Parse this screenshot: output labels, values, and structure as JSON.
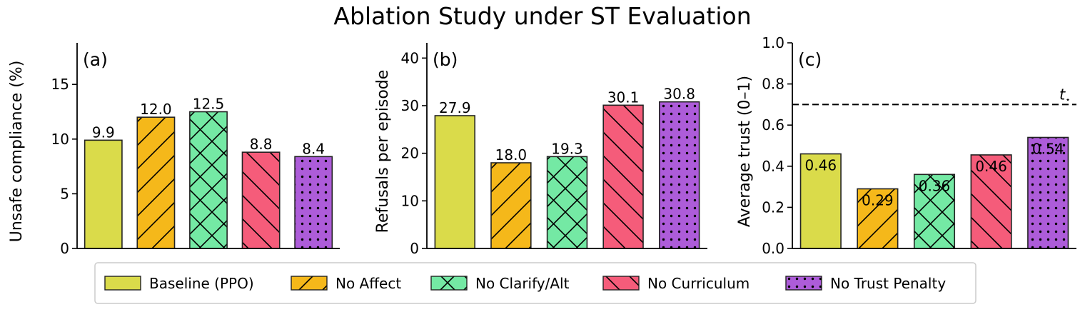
{
  "title": "Ablation Study under ST Evaluation",
  "legend": {
    "placement": "bottom-center",
    "entries": [
      {
        "label": "Baseline (PPO)",
        "color": "#dadb4a",
        "hatch": "none"
      },
      {
        "label": "No Affect",
        "color": "#f5b81a",
        "hatch": "/"
      },
      {
        "label": "No Clarify/Alt",
        "color": "#74e9a4",
        "hatch": "x"
      },
      {
        "label": "No Curriculum",
        "color": "#f55c7a",
        "hatch": "\\"
      },
      {
        "label": "No Trust Penalty",
        "color": "#ad5cd9",
        "hatch": "."
      }
    ]
  },
  "chart_data": [
    {
      "type": "bar",
      "panel_label": "(a)",
      "ylabel": "Unsafe compliance (%)",
      "categories": [
        "Baseline (PPO)",
        "No Affect",
        "No Clarify/Alt",
        "No Curriculum",
        "No Trust Penalty"
      ],
      "values": [
        9.9,
        12.0,
        12.5,
        8.8,
        8.4
      ],
      "data_labels": [
        "9.9",
        "12.0",
        "12.5",
        "8.8",
        "8.4"
      ],
      "yticks": [
        0,
        5,
        10,
        15
      ],
      "ylim": [
        0,
        18.8
      ],
      "label_position": "above",
      "grid": false
    },
    {
      "type": "bar",
      "panel_label": "(b)",
      "ylabel": "Refusals per episode",
      "categories": [
        "Baseline (PPO)",
        "No Affect",
        "No Clarify/Alt",
        "No Curriculum",
        "No Trust Penalty"
      ],
      "values": [
        27.9,
        18.0,
        19.3,
        30.1,
        30.8
      ],
      "data_labels": [
        "27.9",
        "18.0",
        "19.3",
        "30.1",
        "30.8"
      ],
      "yticks": [
        0,
        10,
        20,
        30,
        40
      ],
      "ylim": [
        0,
        43.2
      ],
      "label_position": "above",
      "grid": false
    },
    {
      "type": "bar",
      "panel_label": "(c)",
      "ylabel": "Average trust (0–1)",
      "categories": [
        "Baseline (PPO)",
        "No Affect",
        "No Clarify/Alt",
        "No Curriculum",
        "No Trust Penalty"
      ],
      "values": [
        0.46,
        0.29,
        0.36,
        0.455,
        0.54
      ],
      "data_labels": [
        "0.46",
        "0.29",
        "0.36",
        "0.46",
        "0.54"
      ],
      "yticks": [
        "0.0",
        "0.2",
        "0.4",
        "0.6",
        "0.8",
        "1.0"
      ],
      "ylim": [
        0,
        1.0
      ],
      "label_position": "inside-top",
      "threshold": {
        "value": 0.7,
        "label": "t",
        "label_subscript": "⋆",
        "style": "dashed"
      },
      "grid": false
    }
  ]
}
